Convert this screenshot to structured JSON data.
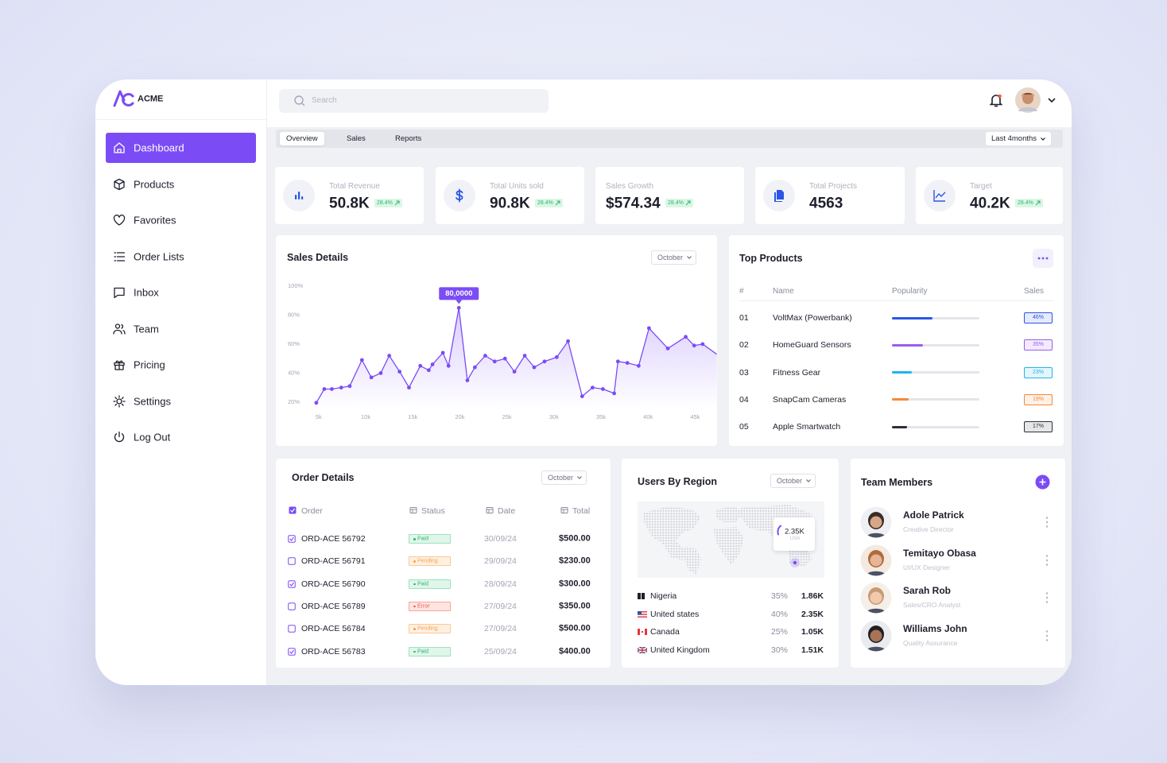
{
  "sidebar": {
    "brand": "ACME",
    "nav": [
      {
        "label": "Dashboard",
        "active": true
      },
      {
        "label": "Products",
        "active": false
      },
      {
        "label": "Favorites",
        "active": false
      },
      {
        "label": "Order Lists",
        "active": false
      },
      {
        "label": "Inbox",
        "active": false
      },
      {
        "label": "Team",
        "active": false
      },
      {
        "label": "Pricing",
        "active": false
      },
      {
        "label": "Settings",
        "active": false
      },
      {
        "label": "Log Out",
        "active": false
      }
    ]
  },
  "header": {
    "search_placeholder": "Search"
  },
  "tabs": {
    "items": [
      "Overview",
      "Sales",
      "Reports"
    ],
    "active": 0,
    "range": "Last 4months"
  },
  "stats": [
    {
      "label": "Total Revenue",
      "value": "50.8K",
      "change": "28.4%"
    },
    {
      "label": "Total Units sold",
      "value": "90.8K",
      "change": "28.4%"
    },
    {
      "label": "Sales Growth",
      "value": "$574.34",
      "change": "28.4%"
    },
    {
      "label": "Total Projects",
      "value": "4563"
    },
    {
      "label": "Target",
      "value": "40.2K",
      "change": "28.4%"
    }
  ],
  "sales_details": {
    "title": "Sales Details",
    "filter": "October",
    "chart": {
      "type": "line",
      "color": "#7b4cf5",
      "x": [
        4750,
        5600,
        6400,
        7400,
        8300,
        9600,
        10600,
        11600,
        12500,
        13600,
        14600,
        15800,
        16700,
        17100,
        18200,
        18800,
        19900,
        20800,
        21600,
        22700,
        23700,
        24800,
        25800,
        26900,
        27900,
        29000,
        30300,
        31500,
        33000,
        34100,
        35200,
        36400,
        36800,
        37800,
        39000,
        40100,
        42100,
        44000,
        44900,
        45800,
        47300
      ],
      "values": [
        19.5,
        29,
        29,
        30,
        31,
        49,
        37,
        40,
        52,
        41,
        30,
        45,
        42,
        46,
        54,
        45,
        85,
        35,
        44,
        52,
        48,
        50,
        41,
        52,
        44,
        48,
        51,
        62,
        24,
        30,
        29,
        26,
        48,
        47,
        45,
        71,
        57,
        65,
        59,
        60,
        53
      ],
      "xlim": [
        4000,
        47500
      ],
      "ylim": [
        15,
        100
      ],
      "xticks": [
        {
          "value": 5000,
          "label": "5k"
        },
        {
          "value": 10000,
          "label": "10k"
        },
        {
          "value": 15000,
          "label": "15k"
        },
        {
          "value": 20000,
          "label": "20k"
        },
        {
          "value": 25000,
          "label": "25k"
        },
        {
          "value": 30000,
          "label": "30k"
        },
        {
          "value": 35000,
          "label": "35k"
        },
        {
          "value": 40000,
          "label": "40k"
        },
        {
          "value": 45000,
          "label": "45k"
        }
      ],
      "yticks": [
        {
          "value": 20,
          "label": "20%"
        },
        {
          "value": 40,
          "label": "40%"
        },
        {
          "value": 60,
          "label": "60%"
        },
        {
          "value": 80,
          "label": "80%"
        },
        {
          "value": 100,
          "label": "100%"
        }
      ],
      "annotation": {
        "label": "80,0000",
        "x": 19900,
        "y": 85
      }
    }
  },
  "top_products": {
    "title": "Top Products",
    "columns": [
      "#",
      "Name",
      "Popularity",
      "Sales"
    ],
    "rows": [
      {
        "rank": "01",
        "name": "VoltMax (Powerbank)",
        "popularity": 46,
        "label": "46%",
        "color": "#2a55e5"
      },
      {
        "rank": "02",
        "name": "HomeGuard Sensors",
        "popularity": 35,
        "label": "35%",
        "color": "#9a5cf0"
      },
      {
        "rank": "03",
        "name": "Fitness Gear",
        "popularity": 23,
        "label": "23%",
        "color": "#1eb4ef"
      },
      {
        "rank": "04",
        "name": "SnapCam Cameras",
        "popularity": 19,
        "label": "19%",
        "color": "#f5893a"
      },
      {
        "rank": "05",
        "name": "Apple Smartwatch",
        "popularity": 17,
        "label": "17%",
        "color": "#2b303b"
      }
    ]
  },
  "order_details": {
    "title": "Order Details",
    "filter": "October",
    "columns": [
      "Order",
      "Status",
      "Date",
      "Total"
    ],
    "rows": [
      {
        "order": "ORD-ACE 56792",
        "status": "Paid",
        "date": "30/09/24",
        "total": "$500.00",
        "checked": true
      },
      {
        "order": "ORD-ACE 56791",
        "status": "Pending",
        "date": "29/09/24",
        "total": "$230.00",
        "checked": false
      },
      {
        "order": "ORD-ACE 56790",
        "status": "Paid",
        "date": "28/09/24",
        "total": "$300.00",
        "checked": true
      },
      {
        "order": "ORD-ACE 56789",
        "status": "Error",
        "date": "27/09/24",
        "total": "$350.00",
        "checked": false
      },
      {
        "order": "ORD-ACE 56784",
        "status": "Pending",
        "date": "27/09/24",
        "total": "$500.00",
        "checked": false
      },
      {
        "order": "ORD-ACE 56783",
        "status": "Paid",
        "date": "25/09/24",
        "total": "$400.00",
        "checked": true
      }
    ]
  },
  "users_by_region": {
    "title": "Users By Region",
    "filter": "October",
    "map_tooltip": {
      "value": "2.35K",
      "label": "USA"
    },
    "rows": [
      {
        "country": "Nigeria",
        "share": "35%",
        "users": "1.86K"
      },
      {
        "country": "United states",
        "share": "40%",
        "users": "2.35K"
      },
      {
        "country": "Canada",
        "share": "25%",
        "users": "1.05K"
      },
      {
        "country": "United Kingdom",
        "share": "30%",
        "users": "1.51K"
      }
    ]
  },
  "team_members": {
    "title": "Team Members",
    "members": [
      {
        "name": "Adole Patrick",
        "role": "Creative Director"
      },
      {
        "name": "Temitayo Obasa",
        "role": "UI/UX Designer"
      },
      {
        "name": "Sarah Rob",
        "role": "Sales/CRO Analyst"
      },
      {
        "name": "Williams John",
        "role": "Quality Assurance"
      }
    ]
  }
}
